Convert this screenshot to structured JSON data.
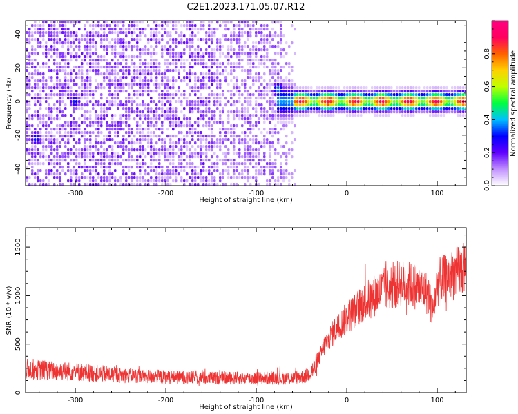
{
  "page_title": "C2E1.2023.171.05.07.R12",
  "chart_data": [
    {
      "type": "heatmap",
      "xlabel": "Height of straight line (km)",
      "ylabel": "Frequency (Hz)",
      "xlim": [
        -355,
        132
      ],
      "ylim": [
        -50,
        48
      ],
      "x_ticks": [
        -300,
        -200,
        -100,
        0,
        100
      ],
      "y_ticks": [
        -40,
        -20,
        0,
        20,
        40
      ],
      "colorbar": {
        "label": "Normalized spectral amplitude",
        "range": [
          0,
          1
        ],
        "ticks": [
          0.0,
          0.2,
          0.4,
          0.6,
          0.8
        ],
        "colors": [
          "#ffffff",
          "#c090ff",
          "#6000ff",
          "#0000ff",
          "#00c0ff",
          "#00ff40",
          "#c0ff00",
          "#ffd000",
          "#ff6000",
          "#ff0060",
          "#ff0080"
        ]
      },
      "noise_region": {
        "x_range": [
          -355,
          -57
        ],
        "y_range": [
          -50,
          48
        ],
        "typical_amplitude": 0.1
      },
      "signal_line": {
        "x_range": [
          -78,
          132
        ],
        "frequency_hz": 1,
        "peak_amplitude": 1.0
      },
      "hot_spots": [
        {
          "x": -345,
          "y": -21,
          "amplitude": 0.3
        },
        {
          "x": -302,
          "y": 1,
          "amplitude": 0.3
        },
        {
          "x": -77,
          "y": 8,
          "amplitude": 0.35
        }
      ]
    },
    {
      "type": "line",
      "xlabel": "Height of straight line (km)",
      "ylabel": "SNR (10 * v/v)",
      "xlim": [
        -355,
        132
      ],
      "ylim": [
        0,
        1700
      ],
      "x_ticks": [
        -300,
        -200,
        -100,
        0,
        100
      ],
      "y_ticks": [
        0,
        500,
        1000,
        1500
      ],
      "color": "#ee3333",
      "series": [
        {
          "x": [
            -355,
            -330,
            -300,
            -250,
            -200,
            -150,
            -100,
            -60,
            -45,
            -35,
            -25,
            -15,
            0,
            15,
            30,
            45,
            60,
            75,
            90,
            95,
            100,
            110,
            120,
            132
          ],
          "y": [
            240,
            230,
            215,
            180,
            160,
            150,
            150,
            150,
            170,
            260,
            480,
            620,
            770,
            900,
            1000,
            1080,
            1130,
            1100,
            1020,
            820,
            1130,
            1180,
            1230,
            1300
          ]
        }
      ]
    }
  ]
}
